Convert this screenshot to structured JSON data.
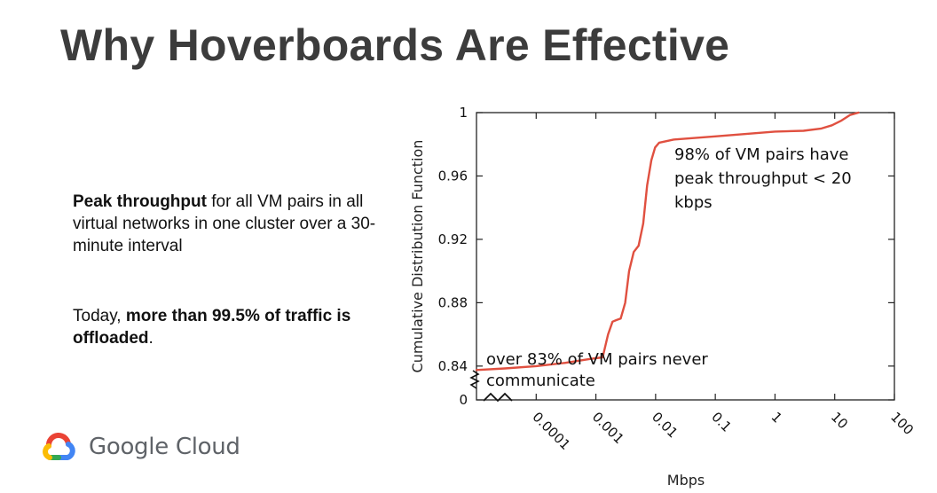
{
  "slide": {
    "title": "Why Hoverboards Are Effective",
    "desc1": {
      "bold": "Peak throughput",
      "rest": " for all VM pairs in all virtual networks in one cluster over a 30-minute interval"
    },
    "desc2": {
      "prefix": "Today, ",
      "bold": "more than 99.5% of traffic is offloaded",
      "suffix": "."
    }
  },
  "brand": {
    "name": "Google Cloud",
    "logo_icon": "google-cloud-logo-icon",
    "colors": {
      "red": "#ea4335",
      "yellow": "#fbbc04",
      "green": "#34a853",
      "blue": "#4285f4"
    }
  },
  "chart_data": {
    "type": "line",
    "xlabel": "Mbps",
    "ylabel": "Cumulative Distribution Function",
    "x_scale": "log",
    "x_ticks": [
      "0.0001",
      "0.001",
      "0.01",
      "0.1",
      "1",
      "10",
      "100"
    ],
    "y_ticks": [
      "0",
      "0.84",
      "0.88",
      "0.92",
      "0.96",
      "1"
    ],
    "ylim": [
      0.836,
      1
    ],
    "y_axis_break": true,
    "line_color": "#e05040",
    "series": [
      {
        "x": [
          1e-05,
          3e-05,
          0.0001,
          0.0003,
          0.0008,
          0.0013,
          0.0016,
          0.0019,
          0.0022,
          0.0026,
          0.0031,
          0.0036,
          0.0043,
          0.0052,
          0.0062,
          0.0072,
          0.0085,
          0.0098,
          0.0115,
          0.02,
          0.1,
          1,
          3,
          6,
          9,
          13,
          18,
          25
        ],
        "y": [
          0.8375,
          0.8385,
          0.84,
          0.842,
          0.8445,
          0.8455,
          0.86,
          0.868,
          0.869,
          0.87,
          0.88,
          0.9,
          0.912,
          0.916,
          0.93,
          0.954,
          0.97,
          0.978,
          0.981,
          0.983,
          0.985,
          0.988,
          0.9885,
          0.99,
          0.992,
          0.995,
          0.9985,
          1.0
        ]
      }
    ],
    "annotations": [
      {
        "lines": [
          "98% of VM pairs have",
          "peak throughput < 20",
          "kbps"
        ]
      },
      {
        "lines": [
          "over 83% of VM pairs never",
          "communicate"
        ]
      }
    ]
  }
}
